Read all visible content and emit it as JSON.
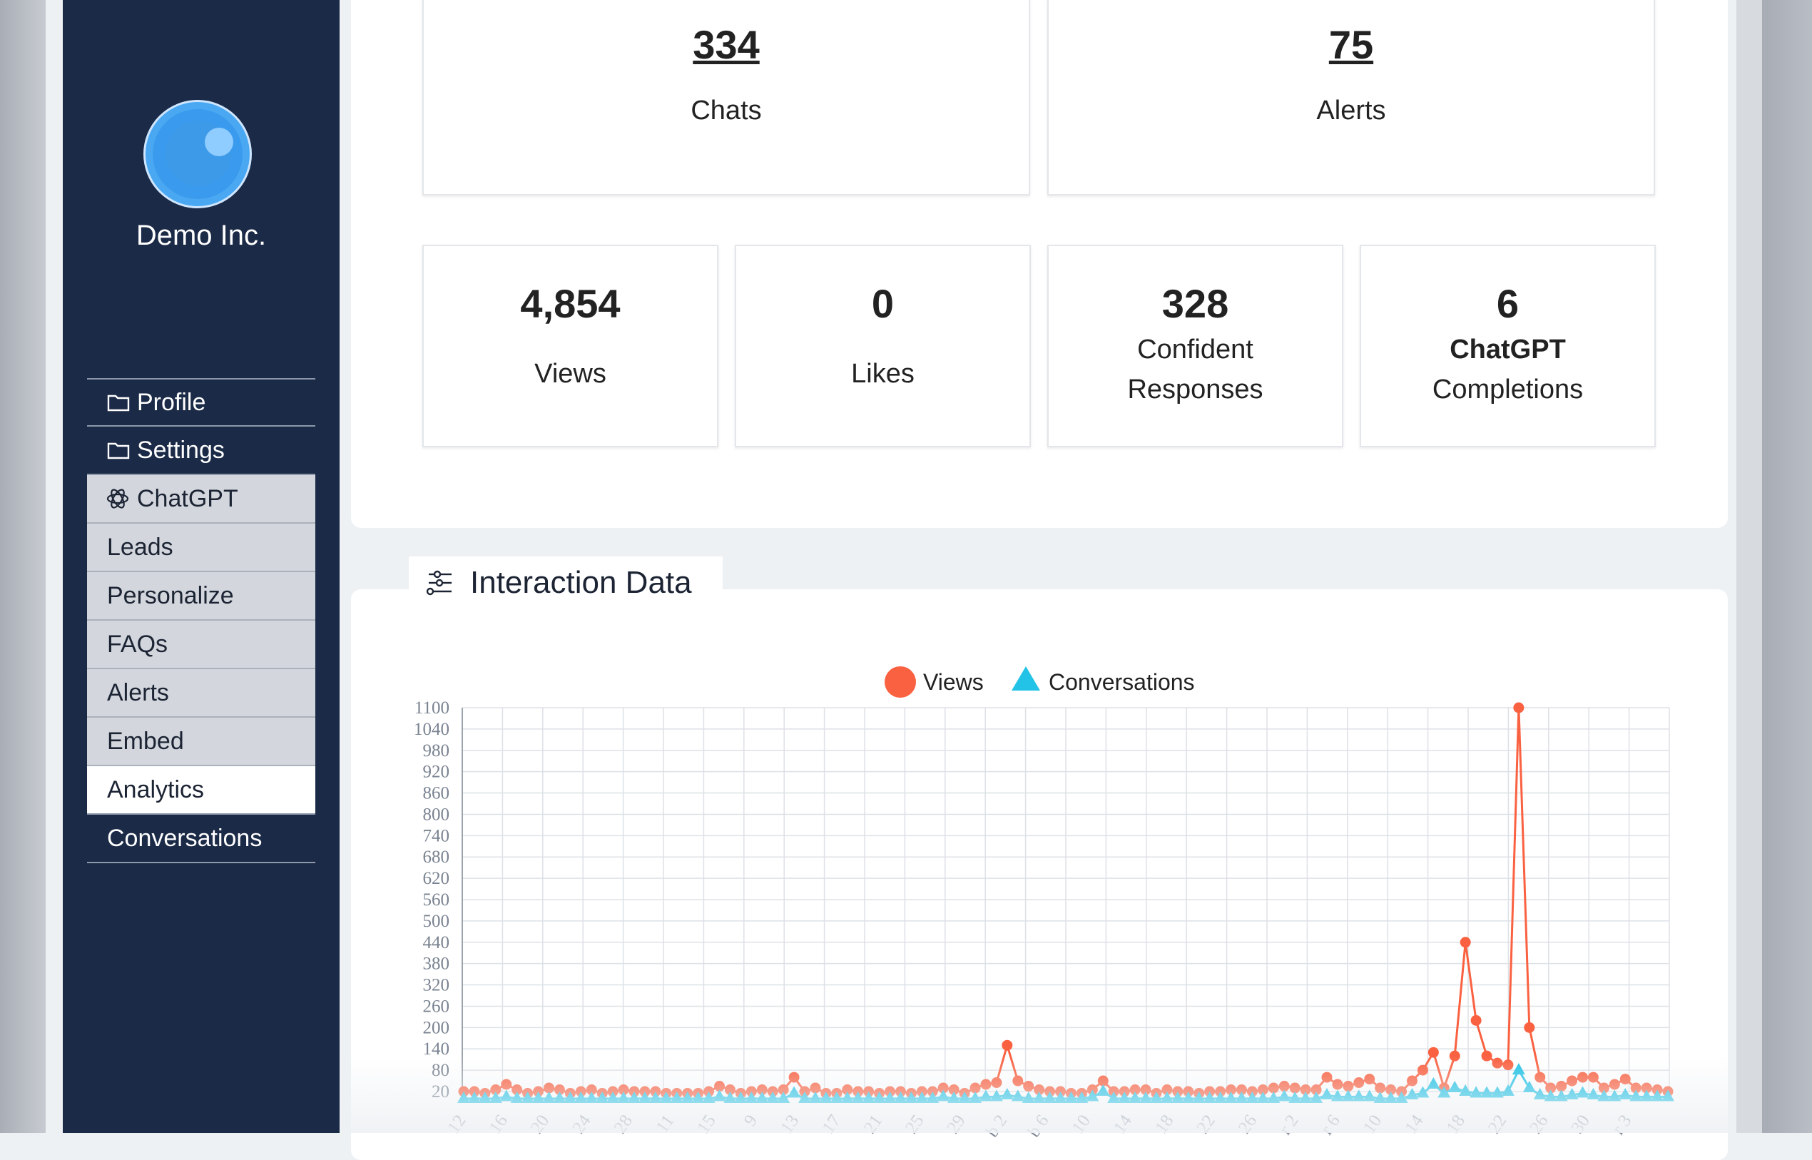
{
  "sidebar": {
    "company": "Demo Inc.",
    "items": [
      {
        "label": "Profile"
      },
      {
        "label": "Settings"
      },
      {
        "label": "ChatGPT"
      },
      {
        "label": "Leads"
      },
      {
        "label": "Personalize"
      },
      {
        "label": "FAQs"
      },
      {
        "label": "Alerts"
      },
      {
        "label": "Embed"
      },
      {
        "label": "Analytics"
      },
      {
        "label": "Conversations"
      }
    ]
  },
  "stats_top": {
    "chats": {
      "value": "334",
      "label": "Chats"
    },
    "alerts": {
      "value": "75",
      "label": "Alerts"
    }
  },
  "stats": {
    "views": {
      "value": "4,854",
      "label": "Views"
    },
    "likes": {
      "value": "0",
      "label": "Likes"
    },
    "confident": {
      "value": "328",
      "label1": "Confident",
      "label2": "Responses"
    },
    "chatgpt": {
      "value": "6",
      "label1": "ChatGPT",
      "label2": "Completions"
    }
  },
  "interaction": {
    "title": "Interaction Data"
  },
  "chart_data": {
    "type": "line",
    "legend_position": "top-center",
    "grid": true,
    "ylim": [
      0,
      1100
    ],
    "yticks": [
      "20",
      "80",
      "140",
      "200",
      "260",
      "320",
      "380",
      "440",
      "500",
      "560",
      "620",
      "680",
      "740",
      "800",
      "860",
      "920",
      "980",
      "1040",
      "1100"
    ],
    "xticks": [
      "12",
      "16",
      "20",
      "24",
      "28",
      "11",
      "15",
      "9",
      "13",
      "17",
      "21",
      "25",
      "29",
      "b 2",
      "b 6",
      "10",
      "14",
      "18",
      "22",
      "26",
      "r 2",
      "r 6",
      "10",
      "14",
      "18",
      "22",
      "26",
      "30",
      "r 3"
    ],
    "series": [
      {
        "name": "Views",
        "color": "#fa6141",
        "marker": "circle",
        "values": [
          20,
          20,
          15,
          25,
          40,
          25,
          15,
          20,
          30,
          25,
          15,
          20,
          25,
          15,
          20,
          25,
          20,
          20,
          20,
          15,
          15,
          15,
          15,
          20,
          35,
          25,
          15,
          20,
          25,
          20,
          25,
          60,
          20,
          30,
          15,
          15,
          25,
          20,
          20,
          15,
          20,
          20,
          15,
          20,
          20,
          30,
          25,
          15,
          30,
          40,
          45,
          150,
          50,
          35,
          25,
          20,
          20,
          15,
          15,
          25,
          50,
          20,
          20,
          25,
          25,
          15,
          25,
          20,
          20,
          15,
          20,
          20,
          25,
          25,
          20,
          25,
          30,
          35,
          30,
          25,
          25,
          60,
          40,
          35,
          45,
          55,
          30,
          25,
          20,
          50,
          80,
          130,
          30,
          120,
          440,
          220,
          120,
          100,
          95,
          1100,
          200,
          60,
          30,
          35,
          50,
          60,
          60,
          30,
          40,
          55,
          30,
          30,
          25,
          20
        ],
        "note": "peaks near 150, 440 and 1100"
      },
      {
        "name": "Conversations",
        "color": "#22c3e6",
        "marker": "triangle",
        "values": [
          0,
          0,
          0,
          0,
          5,
          0,
          0,
          0,
          0,
          0,
          0,
          0,
          0,
          0,
          0,
          0,
          0,
          0,
          0,
          0,
          0,
          0,
          0,
          0,
          5,
          0,
          0,
          0,
          0,
          0,
          0,
          15,
          0,
          0,
          0,
          0,
          0,
          0,
          0,
          0,
          0,
          0,
          0,
          0,
          0,
          5,
          0,
          0,
          0,
          5,
          5,
          10,
          5,
          0,
          0,
          0,
          0,
          0,
          0,
          5,
          20,
          0,
          0,
          0,
          0,
          0,
          0,
          0,
          0,
          0,
          0,
          0,
          0,
          0,
          0,
          0,
          0,
          5,
          0,
          0,
          0,
          10,
          5,
          5,
          5,
          5,
          0,
          0,
          0,
          10,
          15,
          40,
          15,
          30,
          20,
          15,
          15,
          15,
          20,
          80,
          30,
          10,
          5,
          5,
          10,
          15,
          10,
          5,
          5,
          10,
          5,
          5,
          5,
          5
        ]
      }
    ]
  }
}
